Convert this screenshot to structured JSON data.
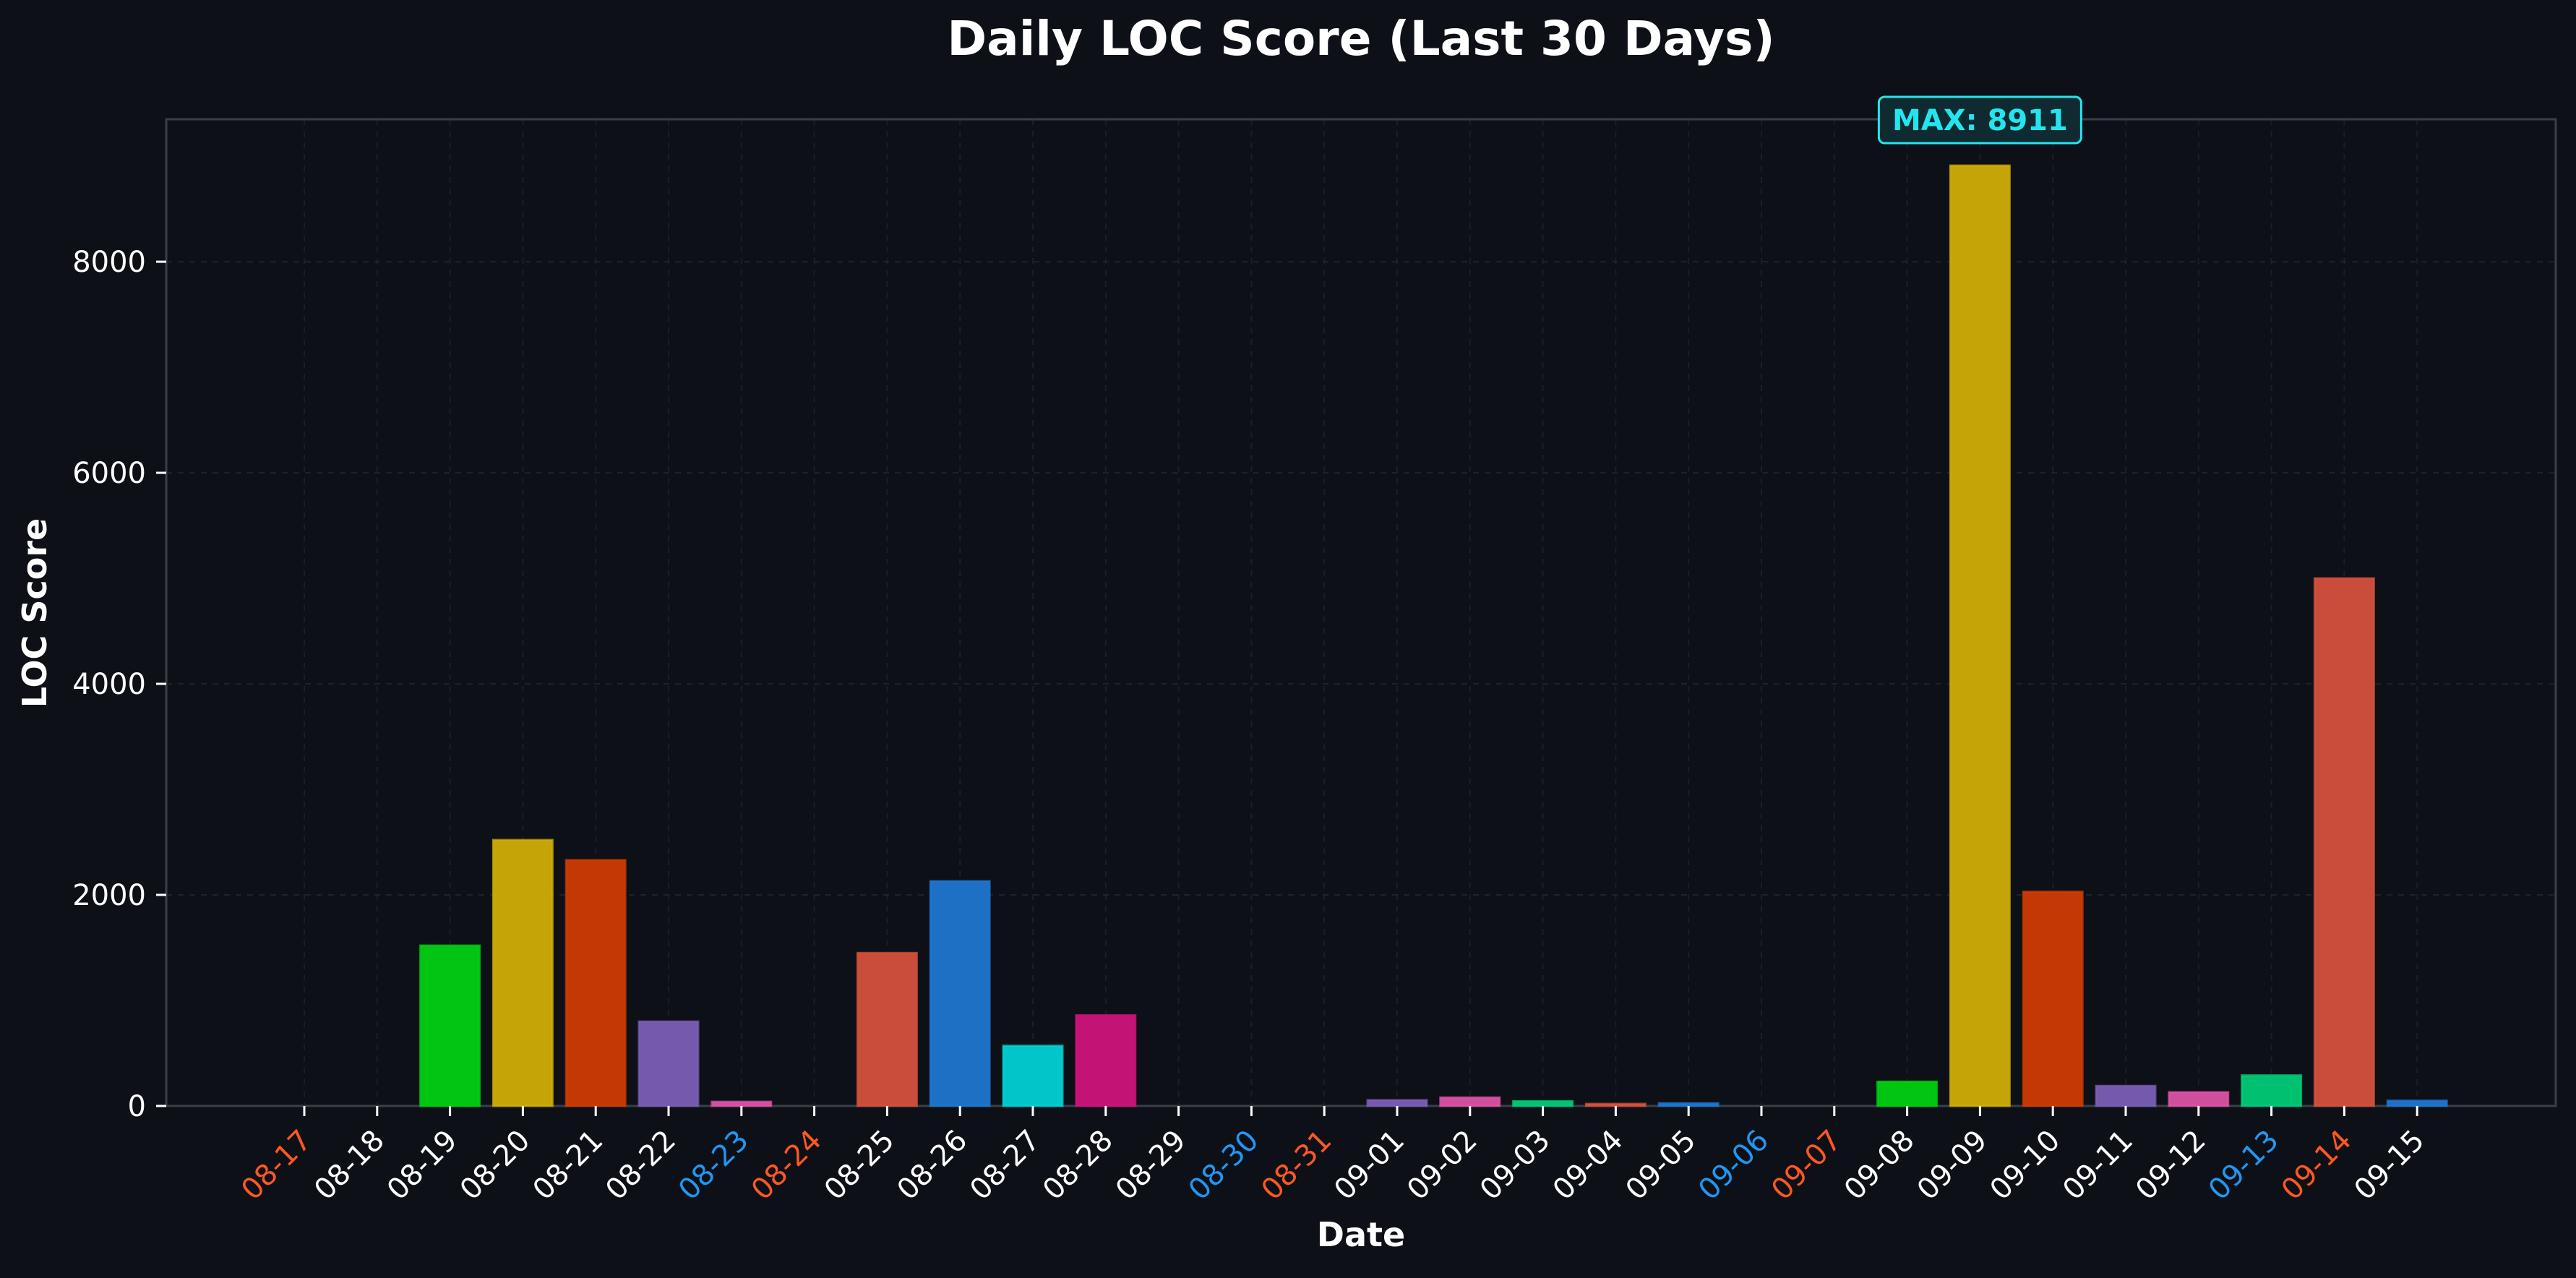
{
  "chart_data": {
    "type": "bar",
    "title": "Daily LOC Score (Last 30 Days)",
    "xlabel": "Date",
    "ylabel": "LOC Score",
    "ylim": [
      0,
      9350
    ],
    "yticks": [
      0,
      2000,
      4000,
      6000,
      8000
    ],
    "grid": true,
    "categories": [
      "08-17",
      "08-18",
      "08-19",
      "08-20",
      "08-21",
      "08-22",
      "08-23",
      "08-24",
      "08-25",
      "08-26",
      "08-27",
      "08-28",
      "08-29",
      "08-30",
      "08-31",
      "09-01",
      "09-02",
      "09-03",
      "09-04",
      "09-05",
      "09-06",
      "09-07",
      "09-08",
      "09-09",
      "09-10",
      "09-11",
      "09-12",
      "09-13",
      "09-14",
      "09-15"
    ],
    "values": [
      0,
      0,
      1520,
      2520,
      2330,
      800,
      40,
      0,
      1450,
      2130,
      570,
      860,
      0,
      0,
      0,
      55,
      80,
      45,
      20,
      25,
      0,
      0,
      230,
      8911,
      2030,
      190,
      130,
      290,
      5000,
      50
    ],
    "bar_colors": [
      "#2196f3",
      "#2196f3",
      "#00d413",
      "#d4b106",
      "#d33c02",
      "#7e5fbb",
      "#e055a8",
      "#2196f3",
      "#d9533e",
      "#1f78d5",
      "#00d5d8",
      "#d3137d",
      "#2196f3",
      "#2196f3",
      "#2196f3",
      "#7e5fbb",
      "#e055a8",
      "#00d07a",
      "#d9533e",
      "#1f78d5",
      "#2196f3",
      "#2196f3",
      "#00d413",
      "#d4b106",
      "#d33c02",
      "#7e5fbb",
      "#e055a8",
      "#00d07a",
      "#d9533e",
      "#1f78d5"
    ],
    "tick_label_colors": [
      "#ff5722",
      "#ffffff",
      "#ffffff",
      "#ffffff",
      "#ffffff",
      "#ffffff",
      "#2196f3",
      "#ff5722",
      "#ffffff",
      "#ffffff",
      "#ffffff",
      "#ffffff",
      "#ffffff",
      "#2196f3",
      "#ff5722",
      "#ffffff",
      "#ffffff",
      "#ffffff",
      "#ffffff",
      "#ffffff",
      "#2196f3",
      "#ff5722",
      "#ffffff",
      "#ffffff",
      "#ffffff",
      "#ffffff",
      "#ffffff",
      "#2196f3",
      "#ff5722",
      "#ffffff"
    ],
    "annotation": {
      "text": "MAX: 8911",
      "category": "09-09",
      "value": 8911,
      "color": "#22e6ef"
    }
  },
  "colors": {
    "background": "#0d1117",
    "plot_background": "#0d1017",
    "axis": "#3a3f47",
    "text": "#ffffff"
  }
}
